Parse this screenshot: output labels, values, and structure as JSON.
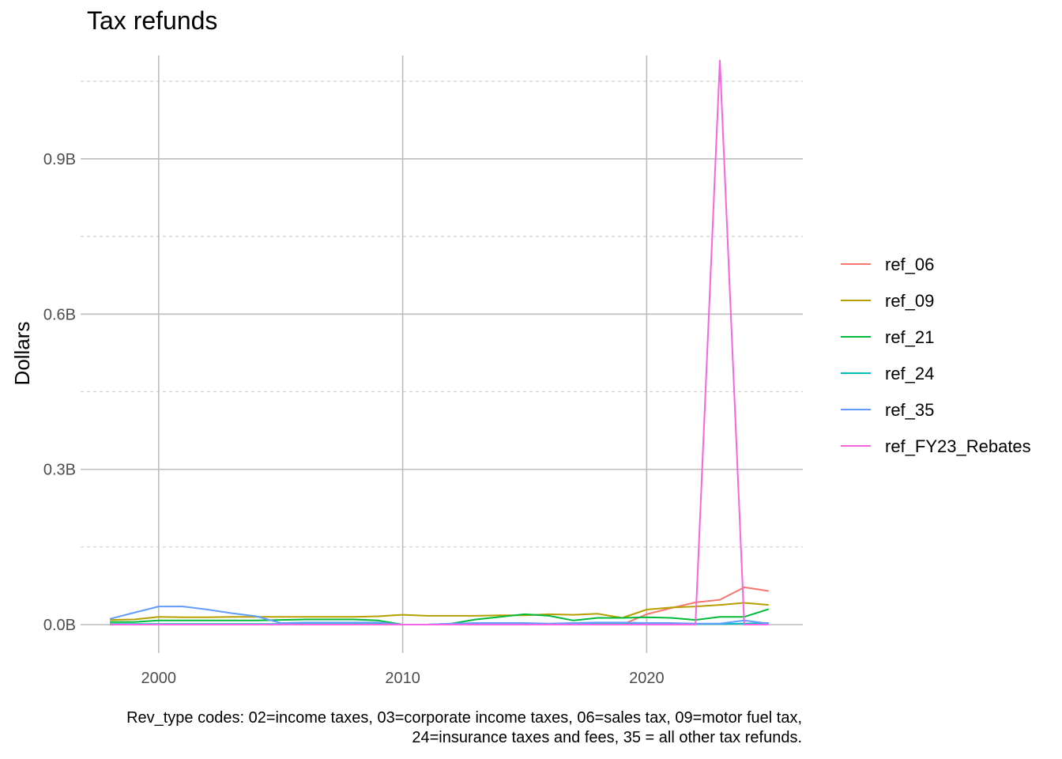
{
  "chart_data": {
    "type": "line",
    "title": "Tax refunds",
    "subtitle": "",
    "xlabel": "",
    "ylabel": "Dollars",
    "caption_lines": [
      "Rev_type codes: 02=income taxes, 03=corporate income taxes, 06=sales tax, 09=motor fuel tax,",
      "24=insurance taxes and fees, 35 = all other tax refunds."
    ],
    "x_ticks": [
      2000,
      2010,
      2020
    ],
    "x_tick_labels": [
      "2000",
      "2010",
      "2020"
    ],
    "y_ticks": [
      0,
      300000000,
      600000000,
      900000000
    ],
    "y_tick_labels": [
      "0.0B",
      "0.3B",
      "0.6B",
      "0.9B"
    ],
    "xlim": [
      1996.8,
      2026.4
    ],
    "ylim": [
      -55000000,
      1100000000
    ],
    "grid": true,
    "legend_position": "right",
    "x": [
      1998,
      1999,
      2000,
      2001,
      2002,
      2003,
      2004,
      2005,
      2006,
      2007,
      2008,
      2009,
      2010,
      2011,
      2012,
      2013,
      2014,
      2015,
      2016,
      2017,
      2018,
      2019,
      2020,
      2021,
      2022,
      2023,
      2024,
      2025
    ],
    "series": [
      {
        "name": "ref_06",
        "color": "#F8766D",
        "values": [
          0,
          0,
          0,
          0,
          0,
          0,
          0,
          0,
          0,
          0,
          0,
          0,
          0,
          0,
          0,
          0,
          0,
          0,
          0,
          0,
          0,
          0,
          20000000,
          32000000,
          43000000,
          48000000,
          72000000,
          65000000
        ]
      },
      {
        "name": "ref_09",
        "color": "#B79F00",
        "values": [
          9000000,
          10000000,
          15000000,
          14000000,
          14000000,
          15000000,
          15000000,
          15000000,
          15000000,
          15000000,
          15000000,
          16000000,
          19000000,
          17000000,
          17000000,
          17000000,
          18000000,
          18000000,
          20000000,
          19000000,
          21000000,
          13000000,
          29000000,
          33000000,
          35000000,
          38000000,
          42000000,
          38000000
        ]
      },
      {
        "name": "ref_21",
        "color": "#00BA38",
        "values": [
          5000000,
          5000000,
          8000000,
          8000000,
          8000000,
          8000000,
          8000000,
          9000000,
          10000000,
          10000000,
          10000000,
          8000000,
          0,
          0,
          2000000,
          10000000,
          15000000,
          20000000,
          17000000,
          8000000,
          13000000,
          13000000,
          14000000,
          13000000,
          9000000,
          15000000,
          15000000,
          30000000
        ]
      },
      {
        "name": "ref_24",
        "color": "#00BFC4",
        "values": [
          1000000,
          1000000,
          1000000,
          1000000,
          1000000,
          1000000,
          1000000,
          1000000,
          1000000,
          1000000,
          1000000,
          1000000,
          0,
          0,
          1000000,
          1000000,
          1000000,
          1000000,
          1000000,
          1000000,
          1000000,
          1000000,
          1000000,
          1000000,
          1000000,
          1000000,
          2000000,
          3000000
        ]
      },
      {
        "name": "ref_35",
        "color": "#619CFF",
        "values": [
          11000000,
          23000000,
          35000000,
          35000000,
          29000000,
          22000000,
          16000000,
          3000000,
          4000000,
          4000000,
          4000000,
          4000000,
          0,
          0,
          2000000,
          3000000,
          3000000,
          3000000,
          2000000,
          3000000,
          4000000,
          4000000,
          3000000,
          3000000,
          2000000,
          2000000,
          8000000,
          2000000
        ]
      },
      {
        "name": "ref_FY23_Rebates",
        "color": "#F564E3",
        "values": [
          0,
          0,
          0,
          0,
          0,
          0,
          0,
          0,
          0,
          0,
          0,
          0,
          0,
          0,
          0,
          0,
          0,
          0,
          0,
          0,
          0,
          0,
          0,
          0,
          0,
          1090000000,
          0,
          0
        ]
      }
    ]
  }
}
